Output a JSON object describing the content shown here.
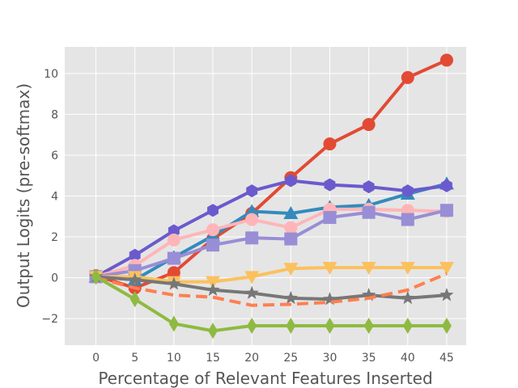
{
  "chart_data": {
    "type": "line",
    "title": "",
    "xlabel": "Percentage of Relevant Features Inserted",
    "ylabel": "Output Logits (pre-softmax)",
    "x": [
      0,
      5,
      10,
      15,
      20,
      25,
      30,
      35,
      40,
      45
    ],
    "xticks": [
      "0",
      "5",
      "10",
      "15",
      "20",
      "25",
      "30",
      "35",
      "40",
      "45"
    ],
    "yticks": [
      "−2",
      "0",
      "2",
      "4",
      "6",
      "8",
      "10"
    ],
    "ytick_values": [
      -2,
      0,
      2,
      4,
      6,
      8,
      10
    ],
    "xlim": [
      -4,
      47.5
    ],
    "ylim": [
      -3.3,
      11.3
    ],
    "grid": true,
    "series": [
      {
        "values": [
          0.1,
          -0.5,
          0.25,
          1.9,
          3.15,
          4.9,
          6.55,
          7.5,
          9.8,
          10.65
        ],
        "color": "#e24a33",
        "marker": "circle",
        "dash": false
      },
      {
        "values": [
          0.05,
          -0.1,
          1.0,
          2.05,
          3.25,
          3.15,
          3.45,
          3.55,
          4.1,
          4.6
        ],
        "color": "#348abd",
        "marker": "triangle-up",
        "dash": false
      },
      {
        "values": [
          0.05,
          1.1,
          2.3,
          3.3,
          4.25,
          4.75,
          4.55,
          4.45,
          4.25,
          4.5
        ],
        "color": "#6a5acd",
        "marker": "hexagon",
        "dash": false
      },
      {
        "values": [
          0.05,
          0.6,
          1.85,
          2.35,
          2.85,
          2.45,
          3.35,
          3.35,
          3.3,
          3.25
        ],
        "color": "#ffb5b8",
        "marker": "circle",
        "dash": false
      },
      {
        "values": [
          0.05,
          0.35,
          0.95,
          1.6,
          1.95,
          1.9,
          2.95,
          3.2,
          2.85,
          3.3
        ],
        "color": "#988ed5",
        "marker": "square",
        "dash": false
      },
      {
        "values": [
          0.05,
          0.05,
          -0.2,
          -0.2,
          0.05,
          0.45,
          0.5,
          0.5,
          0.5,
          0.5
        ],
        "color": "#fbc15e",
        "marker": "triangle-down",
        "dash": false
      },
      {
        "values": [
          0.05,
          -0.1,
          -0.3,
          -0.6,
          -0.75,
          -1.0,
          -1.05,
          -0.85,
          -1.0,
          -0.85
        ],
        "color": "#777777",
        "marker": "star",
        "dash": false
      },
      {
        "values": [
          0.0,
          -0.5,
          -0.85,
          -0.95,
          -1.35,
          -1.3,
          -1.2,
          -1.0,
          -0.6,
          0.2
        ],
        "color": "#ff7f50",
        "marker": "none",
        "dash": true
      },
      {
        "values": [
          0.05,
          -1.05,
          -2.25,
          -2.6,
          -2.35,
          -2.35,
          -2.35,
          -2.35,
          -2.35,
          -2.35
        ],
        "color": "#8eba42",
        "marker": "diamond",
        "dash": false
      }
    ]
  }
}
